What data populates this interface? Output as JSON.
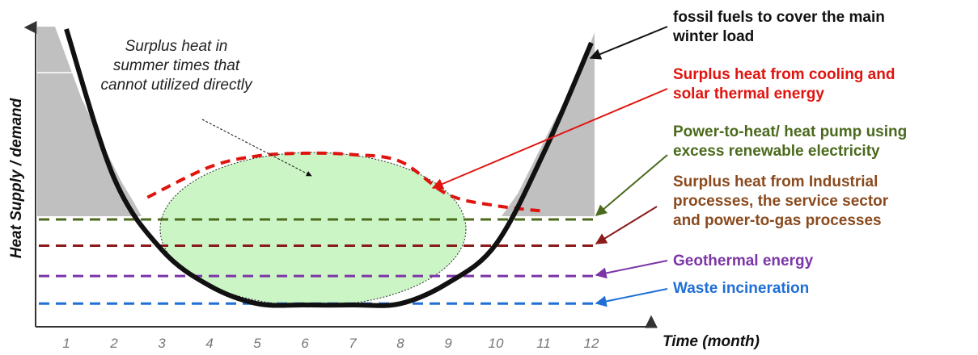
{
  "chart_data": {
    "type": "line",
    "ylabel": "Heat Supply / demand",
    "xlabel": "Time (month)",
    "categories": [
      "1",
      "2",
      "3",
      "4",
      "5",
      "6",
      "7",
      "8",
      "9",
      "10",
      "11",
      "12"
    ],
    "demand_curve": {
      "label_lines": [
        "fossil fuels to cover the main",
        "winter load"
      ],
      "color": "#111111",
      "values": [
        [
          1,
          100
        ],
        [
          2,
          46
        ],
        [
          3,
          20
        ],
        [
          4,
          7
        ],
        [
          5,
          0.5
        ],
        [
          6,
          0
        ],
        [
          7,
          0
        ],
        [
          8,
          0.5
        ],
        [
          9,
          8
        ],
        [
          10,
          22
        ],
        [
          11,
          55
        ],
        [
          12,
          95
        ]
      ]
    },
    "surplus_curve": {
      "label_lines": [
        "Surplus heat from cooling and",
        "solar thermal energy"
      ],
      "color": "#e0140f",
      "values": [
        [
          2.7,
          39
        ],
        [
          4,
          50
        ],
        [
          5,
          54
        ],
        [
          6,
          55
        ],
        [
          7,
          54.5
        ],
        [
          8,
          52
        ],
        [
          9,
          40
        ],
        [
          10,
          36
        ],
        [
          11,
          34
        ]
      ]
    },
    "baselines": [
      {
        "label_lines": [
          "Power-to-heat/ heat pump using",
          "excess renewable electricity"
        ],
        "value": 31,
        "color": "#4b6a1d"
      },
      {
        "label_lines": [
          "Surplus heat from Industrial",
          "processes, the service sector",
          "and power-to-gas processes"
        ],
        "value": 21.5,
        "color": "#8b1a1a"
      },
      {
        "label_lines": [
          "Geothermal energy"
        ],
        "value": 10.5,
        "color": "#7b35a6"
      },
      {
        "label_lines": [
          "Waste incineration"
        ],
        "value": 0.5,
        "color": "#1f6fd6"
      }
    ],
    "annotation": {
      "lines": [
        "Surplus heat in",
        "summer times that",
        "cannot utilized directly"
      ]
    },
    "colors": {
      "label_surplus": "#e0140f",
      "label_heatpump": "#4b6a1d",
      "label_industry": "#8a4a1e",
      "label_geo": "#7b35a6",
      "label_waste": "#1f6fd6",
      "winter_fill": "#c0c0c0",
      "summer_fill": "#ccf5c6"
    },
    "grid": false
  }
}
